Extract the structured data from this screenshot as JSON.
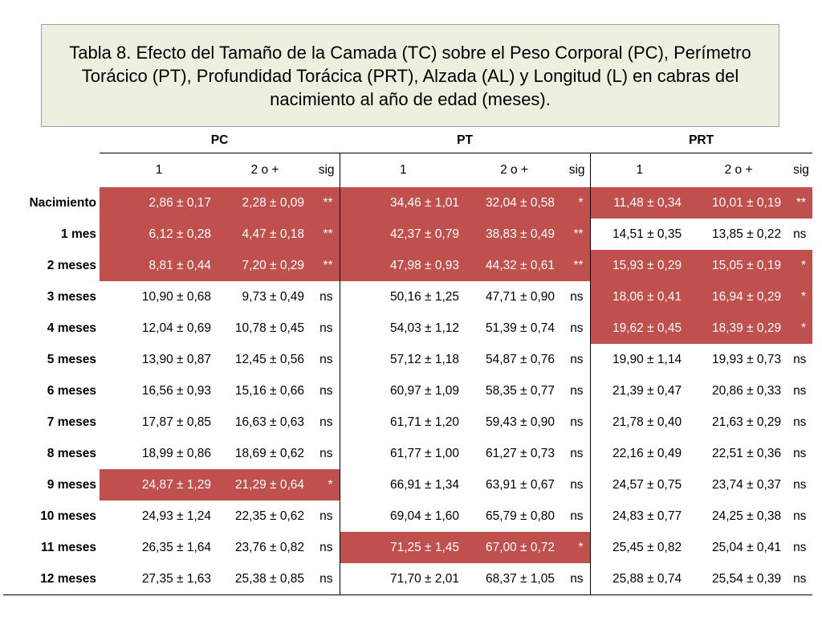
{
  "title": "Tabla 8. Efecto del Tamaño de la Camada (TC) sobre el Peso Corporal (PC), Perímetro Torácico (PT), Profundidad Torácica (PRT), Alzada (AL) y Longitud (L) en cabras del nacimiento al año de edad (meses).",
  "highlight_color": "#c0504d",
  "title_bg_color": "#ebf1de",
  "groups": [
    "PC",
    "PT",
    "PRT"
  ],
  "subheaders": [
    "1",
    "2 o +",
    "sig"
  ],
  "rows": [
    {
      "label": "Nacimiento",
      "cells": [
        {
          "v": "2,86 ± 0,17",
          "hl": true
        },
        {
          "v": "2,28 ± 0,09",
          "hl": true
        },
        {
          "v": "**",
          "hl": true
        },
        {
          "v": "34,46 ± 1,01",
          "hl": true
        },
        {
          "v": "32,04 ± 0,58",
          "hl": true
        },
        {
          "v": "*",
          "hl": true
        },
        {
          "v": "11,48 ± 0,34",
          "hl": true
        },
        {
          "v": "10,01 ± 0,19",
          "hl": true
        },
        {
          "v": "**",
          "hl": true
        }
      ]
    },
    {
      "label": "1 mes",
      "cells": [
        {
          "v": "6,12 ± 0,28",
          "hl": true
        },
        {
          "v": "4,47 ± 0,18",
          "hl": true
        },
        {
          "v": "**",
          "hl": true
        },
        {
          "v": "42,37 ± 0,79",
          "hl": true
        },
        {
          "v": "38,83 ± 0,49",
          "hl": true
        },
        {
          "v": "**",
          "hl": true
        },
        {
          "v": "14,51 ± 0,35",
          "hl": false
        },
        {
          "v": "13,85 ± 0,22",
          "hl": false
        },
        {
          "v": "ns",
          "hl": false
        }
      ]
    },
    {
      "label": "2 meses",
      "cells": [
        {
          "v": "8,81 ± 0,44",
          "hl": true
        },
        {
          "v": "7,20 ± 0,29",
          "hl": true
        },
        {
          "v": "**",
          "hl": true
        },
        {
          "v": "47,98 ± 0,93",
          "hl": true
        },
        {
          "v": "44,32 ± 0,61",
          "hl": true
        },
        {
          "v": "**",
          "hl": true
        },
        {
          "v": "15,93 ± 0,29",
          "hl": true
        },
        {
          "v": "15,05 ± 0,19",
          "hl": true
        },
        {
          "v": "*",
          "hl": true
        }
      ]
    },
    {
      "label": "3 meses",
      "cells": [
        {
          "v": "10,90 ± 0,68",
          "hl": false
        },
        {
          "v": "9,73 ± 0,49",
          "hl": false
        },
        {
          "v": "ns",
          "hl": false
        },
        {
          "v": "50,16 ± 1,25",
          "hl": false
        },
        {
          "v": "47,71 ± 0,90",
          "hl": false
        },
        {
          "v": "ns",
          "hl": false
        },
        {
          "v": "18,06 ± 0,41",
          "hl": true
        },
        {
          "v": "16,94 ± 0,29",
          "hl": true
        },
        {
          "v": "*",
          "hl": true
        }
      ]
    },
    {
      "label": "4 meses",
      "cells": [
        {
          "v": "12,04 ± 0,69",
          "hl": false
        },
        {
          "v": "10,78 ± 0,45",
          "hl": false
        },
        {
          "v": "ns",
          "hl": false
        },
        {
          "v": "54,03 ± 1,12",
          "hl": false
        },
        {
          "v": "51,39 ± 0,74",
          "hl": false
        },
        {
          "v": "ns",
          "hl": false
        },
        {
          "v": "19,62 ± 0,45",
          "hl": true
        },
        {
          "v": "18,39 ± 0,29",
          "hl": true
        },
        {
          "v": "*",
          "hl": true
        }
      ]
    },
    {
      "label": "5 meses",
      "cells": [
        {
          "v": "13,90 ± 0,87",
          "hl": false
        },
        {
          "v": "12,45 ± 0,56",
          "hl": false
        },
        {
          "v": "ns",
          "hl": false
        },
        {
          "v": "57,12 ± 1,18",
          "hl": false
        },
        {
          "v": "54,87 ± 0,76",
          "hl": false
        },
        {
          "v": "ns",
          "hl": false
        },
        {
          "v": "19,90 ± 1,14",
          "hl": false
        },
        {
          "v": "19,93 ± 0,73",
          "hl": false
        },
        {
          "v": "ns",
          "hl": false
        }
      ]
    },
    {
      "label": "6 meses",
      "cells": [
        {
          "v": "16,56 ± 0,93",
          "hl": false
        },
        {
          "v": "15,16 ± 0,66",
          "hl": false
        },
        {
          "v": "ns",
          "hl": false
        },
        {
          "v": "60,97 ± 1,09",
          "hl": false
        },
        {
          "v": "58,35 ± 0,77",
          "hl": false
        },
        {
          "v": "ns",
          "hl": false
        },
        {
          "v": "21,39 ± 0,47",
          "hl": false
        },
        {
          "v": "20,86 ± 0,33",
          "hl": false
        },
        {
          "v": "ns",
          "hl": false
        }
      ]
    },
    {
      "label": "7 meses",
      "cells": [
        {
          "v": "17,87 ± 0,85",
          "hl": false
        },
        {
          "v": "16,63 ± 0,63",
          "hl": false
        },
        {
          "v": "ns",
          "hl": false
        },
        {
          "v": "61,71 ± 1,20",
          "hl": false
        },
        {
          "v": "59,43 ± 0,90",
          "hl": false
        },
        {
          "v": "ns",
          "hl": false
        },
        {
          "v": "21,78 ± 0,40",
          "hl": false
        },
        {
          "v": "21,63 ± 0,29",
          "hl": false
        },
        {
          "v": "ns",
          "hl": false
        }
      ]
    },
    {
      "label": "8 meses",
      "cells": [
        {
          "v": "18,99 ± 0,86",
          "hl": false
        },
        {
          "v": "18,69 ± 0,62",
          "hl": false
        },
        {
          "v": "ns",
          "hl": false
        },
        {
          "v": "61,77 ± 1,00",
          "hl": false
        },
        {
          "v": "61,27 ± 0,73",
          "hl": false
        },
        {
          "v": "ns",
          "hl": false
        },
        {
          "v": "22,16 ± 0,49",
          "hl": false
        },
        {
          "v": "22,51 ± 0,36",
          "hl": false
        },
        {
          "v": "ns",
          "hl": false
        }
      ]
    },
    {
      "label": "9 meses",
      "cells": [
        {
          "v": "24,87 ± 1,29",
          "hl": true
        },
        {
          "v": "21,29 ± 0,64",
          "hl": true
        },
        {
          "v": "*",
          "hl": true
        },
        {
          "v": "66,91 ± 1,34",
          "hl": false
        },
        {
          "v": "63,91 ± 0,67",
          "hl": false
        },
        {
          "v": "ns",
          "hl": false
        },
        {
          "v": "24,57 ± 0,75",
          "hl": false
        },
        {
          "v": "23,74 ± 0,37",
          "hl": false
        },
        {
          "v": "ns",
          "hl": false
        }
      ]
    },
    {
      "label": "10 meses",
      "cells": [
        {
          "v": "24,93 ± 1,24",
          "hl": false
        },
        {
          "v": "22,35 ± 0,62",
          "hl": false
        },
        {
          "v": "ns",
          "hl": false
        },
        {
          "v": "69,04 ± 1,60",
          "hl": false
        },
        {
          "v": "65,79 ± 0,80",
          "hl": false
        },
        {
          "v": "ns",
          "hl": false
        },
        {
          "v": "24,83 ± 0,77",
          "hl": false
        },
        {
          "v": "24,25 ± 0,38",
          "hl": false
        },
        {
          "v": "ns",
          "hl": false
        }
      ]
    },
    {
      "label": "11 meses",
      "cells": [
        {
          "v": "26,35 ± 1,64",
          "hl": false
        },
        {
          "v": "23,76 ± 0,82",
          "hl": false
        },
        {
          "v": "ns",
          "hl": false
        },
        {
          "v": "71,25 ± 1,45",
          "hl": true
        },
        {
          "v": "67,00 ± 0,72",
          "hl": true
        },
        {
          "v": "*",
          "hl": true
        },
        {
          "v": "25,45 ± 0,82",
          "hl": false
        },
        {
          "v": "25,04 ± 0,41",
          "hl": false
        },
        {
          "v": "ns",
          "hl": false
        }
      ]
    },
    {
      "label": "12 meses",
      "cells": [
        {
          "v": "27,35 ± 1,63",
          "hl": false
        },
        {
          "v": "25,38 ± 0,85",
          "hl": false
        },
        {
          "v": "ns",
          "hl": false
        },
        {
          "v": "71,70 ± 2,01",
          "hl": false
        },
        {
          "v": "68,37 ± 1,05",
          "hl": false
        },
        {
          "v": "ns",
          "hl": false
        },
        {
          "v": "25,88 ± 0,74",
          "hl": false
        },
        {
          "v": "25,54 ± 0,39",
          "hl": false
        },
        {
          "v": "ns",
          "hl": false
        }
      ]
    }
  ]
}
